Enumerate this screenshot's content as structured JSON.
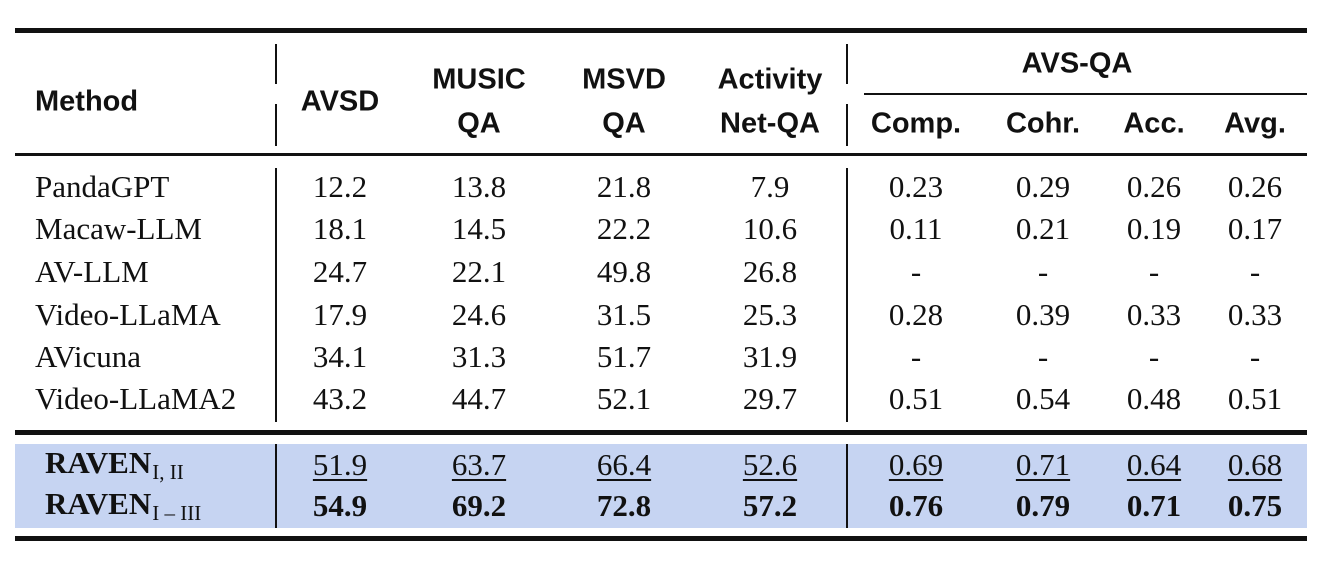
{
  "table": {
    "header": {
      "method": "Method",
      "avsd": "AVSD",
      "music_qa_1": "MUSIC",
      "music_qa_2": "QA",
      "msvd_qa_1": "MSVD",
      "msvd_qa_2": "QA",
      "activity_1": "Activity",
      "activity_2": "Net-QA",
      "avs_qa": "AVS-QA",
      "sub": [
        "Comp.",
        "Cohr.",
        "Acc.",
        "Avg."
      ]
    },
    "rows": [
      {
        "method": "PandaGPT",
        "cells": [
          "12.2",
          "13.8",
          "21.8",
          "7.9",
          "0.23",
          "0.29",
          "0.26",
          "0.26"
        ]
      },
      {
        "method": "Macaw-LLM",
        "cells": [
          "18.1",
          "14.5",
          "22.2",
          "10.6",
          "0.11",
          "0.21",
          "0.19",
          "0.17"
        ]
      },
      {
        "method": "AV-LLM",
        "cells": [
          "24.7",
          "22.1",
          "49.8",
          "26.8",
          "-",
          "-",
          "-",
          "-"
        ]
      },
      {
        "method": "Video-LLaMA",
        "cells": [
          "17.9",
          "24.6",
          "31.5",
          "25.3",
          "0.28",
          "0.39",
          "0.33",
          "0.33"
        ]
      },
      {
        "method": "AVicuna",
        "cells": [
          "34.1",
          "31.3",
          "51.7",
          "31.9",
          "-",
          "-",
          "-",
          "-"
        ]
      },
      {
        "method": "Video-LLaMA2",
        "cells": [
          "43.2",
          "44.7",
          "52.1",
          "29.7",
          "0.51",
          "0.54",
          "0.48",
          "0.51"
        ]
      }
    ],
    "ours": [
      {
        "name": "RAVEN",
        "subscript": "I, II",
        "style": "underline",
        "cells": [
          "51.9",
          "63.7",
          "66.4",
          "52.6",
          "0.69",
          "0.71",
          "0.64",
          "0.68"
        ]
      },
      {
        "name": "RAVEN",
        "subscript": "I – III",
        "style": "bold",
        "cells": [
          "54.9",
          "69.2",
          "72.8",
          "57.2",
          "0.76",
          "0.79",
          "0.71",
          "0.75"
        ]
      }
    ],
    "highlight_color": "#c6d4f2"
  }
}
